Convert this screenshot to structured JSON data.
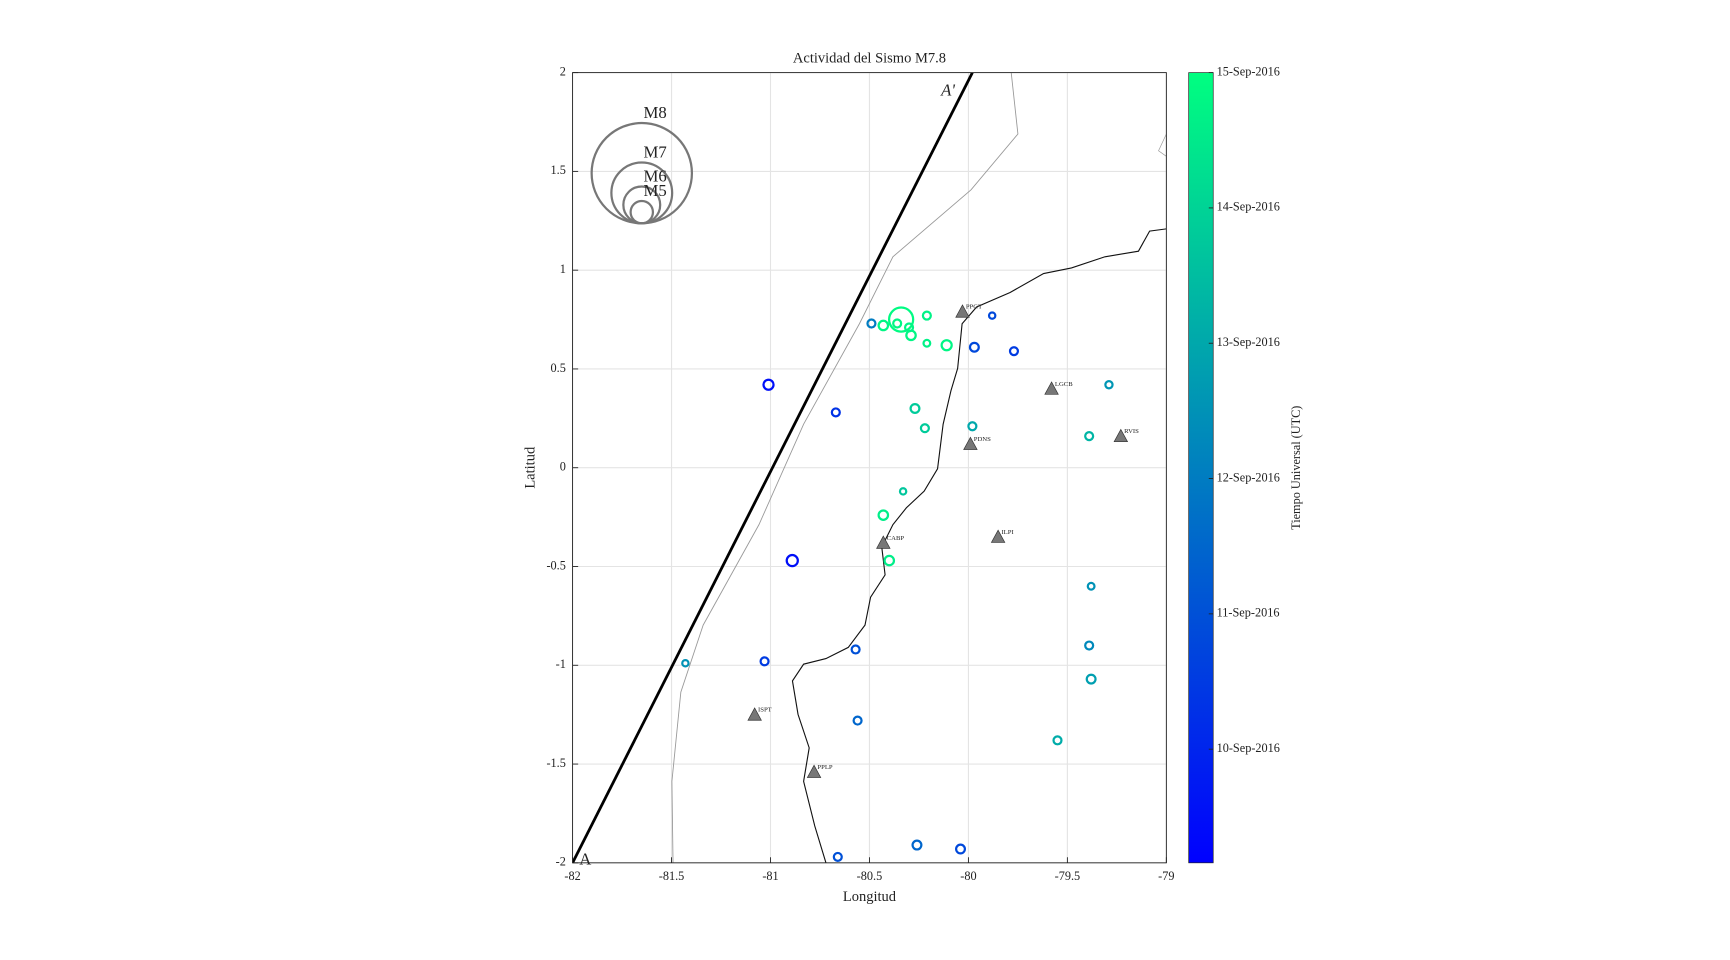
{
  "chart_data": {
    "type": "scatter",
    "title": "Actividad del Sismo M7.8",
    "xlabel": "Longitud",
    "ylabel": "Latitud",
    "xlim": [
      -82,
      -79
    ],
    "xticks": [
      -82,
      -81.5,
      -81,
      -80.5,
      -80,
      -79.5,
      -79
    ],
    "ylim": [
      -2,
      2
    ],
    "yticks": [
      -2,
      -1.5,
      -1,
      -0.5,
      0,
      0.5,
      1,
      1.5,
      2
    ],
    "grid": true,
    "series": [
      {
        "x": [
          -80.34,
          -80.43,
          -80.49,
          -80.36,
          -80.3,
          -80.29,
          -80.21,
          -80.21,
          -80.11,
          -79.97,
          -79.88,
          -79.77,
          -81.01,
          -80.67,
          -80.27,
          -80.22,
          -79.98,
          -79.29,
          -79.39,
          -80.33,
          -80.43,
          -80.89,
          -80.4,
          -79.38,
          -81.43,
          -81.03,
          -80.57,
          -79.39,
          -79.38,
          -80.56,
          -79.55,
          -80.66,
          -80.26,
          -80.04
        ],
        "y": [
          0.75,
          0.72,
          0.73,
          0.73,
          0.71,
          0.67,
          0.77,
          0.63,
          0.62,
          0.61,
          0.77,
          0.59,
          0.42,
          0.28,
          0.3,
          0.2,
          0.21,
          0.42,
          0.16,
          -0.12,
          -0.24,
          -0.47,
          -0.47,
          -0.6,
          -0.99,
          -0.98,
          -0.92,
          -0.9,
          -1.07,
          -1.28,
          -1.38,
          -1.97,
          -1.91,
          -1.93
        ],
        "magnitude": [
          7.8,
          5,
          4.5,
          4.5,
          4.5,
          5,
          4.5,
          4,
          5.2,
          4.8,
          3.8,
          4.5,
          5.2,
          4.5,
          4.8,
          4.5,
          4.5,
          4.2,
          4.5,
          3.8,
          5,
          5.5,
          5,
          4,
          3.8,
          4.5,
          4.5,
          4.5,
          4.8,
          4.5,
          4.5,
          4.5,
          4.8,
          4.8
        ],
        "time": [
          14.9,
          14.8,
          12.0,
          14.8,
          14.8,
          14.8,
          14.7,
          14.7,
          14.8,
          10.8,
          10.8,
          10.5,
          9.5,
          10.3,
          13.8,
          13.8,
          13.0,
          12.6,
          13.3,
          13.7,
          14.6,
          9.5,
          14.6,
          12.5,
          12.5,
          10.5,
          11.0,
          12.3,
          12.8,
          11.5,
          13.1,
          11.0,
          11.5,
          10.8
        ]
      }
    ],
    "size_legend": [
      {
        "value": 8,
        "label": "M8"
      },
      {
        "value": 7,
        "label": "M7"
      },
      {
        "value": 6,
        "label": "M6"
      },
      {
        "value": 5,
        "label": "M5"
      }
    ],
    "stations": [
      {
        "name": "PPGT",
        "lon": -80.03,
        "lat": 0.79
      },
      {
        "name": "LGCB",
        "lon": -79.58,
        "lat": 0.4
      },
      {
        "name": "RVIS",
        "lon": -79.23,
        "lat": 0.16
      },
      {
        "name": "PDNS",
        "lon": -79.99,
        "lat": 0.12
      },
      {
        "name": "CABP",
        "lon": -80.43,
        "lat": -0.38
      },
      {
        "name": "ILPI",
        "lon": -79.85,
        "lat": -0.35
      },
      {
        "name": "ISPT",
        "lon": -81.08,
        "lat": -1.25
      },
      {
        "name": "PPLP",
        "lon": -80.78,
        "lat": -1.54
      }
    ],
    "profile": {
      "start_label": "A",
      "end_label": "A'",
      "x": [
        -82,
        -79.98
      ],
      "y": [
        -2,
        2
      ]
    },
    "colorbar": {
      "label": "Tiempo Universal (UTC)",
      "clim": [
        9.16,
        15
      ],
      "ticks": [
        {
          "value": 15,
          "label": "15-Sep-2016"
        },
        {
          "value": 14,
          "label": "14-Sep-2016"
        },
        {
          "value": 13,
          "label": "13-Sep-2016"
        },
        {
          "value": 12,
          "label": "12-Sep-2016"
        },
        {
          "value": 11,
          "label": "11-Sep-2016"
        },
        {
          "value": 10,
          "label": "10-Sep-2016"
        }
      ]
    }
  }
}
